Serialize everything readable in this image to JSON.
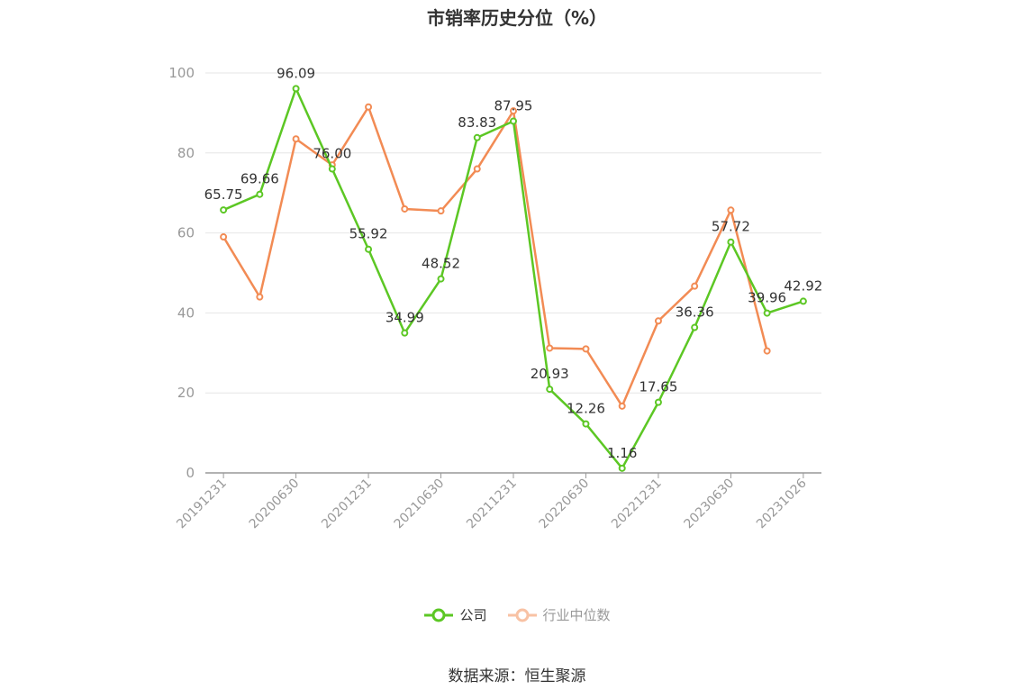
{
  "title": "市销率历史分位（%）",
  "source": "数据来源：恒生聚源",
  "colors": {
    "company": "#5cc724",
    "industry": "#f28b54",
    "industry_legend": "#f8c2a4"
  },
  "chart_data": {
    "type": "line",
    "title": "市销率历史分位（%）",
    "x": [
      "20191231",
      "20200331",
      "20200630",
      "20200930",
      "20201231",
      "20210331",
      "20210630",
      "20210930",
      "20211231",
      "20220331",
      "20220630",
      "20220930",
      "20221231",
      "20230331",
      "20230630",
      "20230930",
      "20231026"
    ],
    "x_tick_labels": [
      "20191231",
      "20200630",
      "20201231",
      "20210630",
      "20211231",
      "20220630",
      "20221231",
      "20230630",
      "20231026"
    ],
    "ylim": [
      0,
      100
    ],
    "yticks": [
      0,
      20,
      40,
      60,
      80,
      100
    ],
    "grid": true,
    "legend_position": "bottom",
    "series": [
      {
        "name": "公司",
        "color": "#5cc724",
        "values": [
          65.75,
          69.66,
          96.09,
          76.0,
          55.92,
          34.99,
          48.52,
          83.83,
          87.95,
          20.93,
          12.26,
          1.16,
          17.65,
          36.36,
          57.72,
          39.96,
          42.92
        ],
        "labels": [
          "65.75",
          "69.66",
          "96.09",
          "76.00",
          "55.92",
          "34.99",
          "48.52",
          "83.83",
          "87.95",
          "20.93",
          "12.26",
          "1.16",
          "17.65",
          "36.36",
          "57.72",
          "39.96",
          "42.92"
        ]
      },
      {
        "name": "行业中位数",
        "color": "#f28b54",
        "values": [
          59,
          44,
          83.5,
          77,
          91.5,
          66,
          65.5,
          76,
          90.5,
          31.2,
          31,
          16.7,
          38,
          46.7,
          65.7,
          30.5,
          null
        ]
      }
    ]
  },
  "legend": {
    "company": "公司",
    "industry": "行业中位数"
  }
}
